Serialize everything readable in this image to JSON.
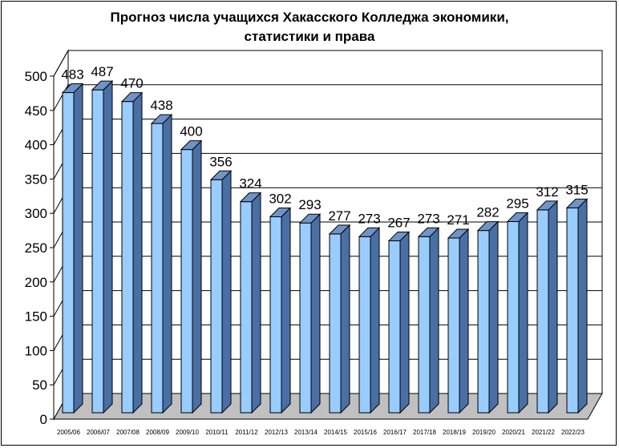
{
  "chart_data": {
    "type": "bar",
    "title_lines": [
      "Прогноз числа учащихся Хакасского Колледжа экономики,",
      "статистики и права"
    ],
    "categories": [
      "2005/06",
      "2006/07",
      "2007/08",
      "2008/09",
      "2009/10",
      "2010/11",
      "2011/12",
      "2012/13",
      "2013/14",
      "2014/15",
      "2015/16",
      "2016/17",
      "2017/18",
      "2018/19",
      "2019/20",
      "2020/21",
      "2021/22",
      "2022/23"
    ],
    "values": [
      483,
      487,
      470,
      438,
      400,
      356,
      324,
      302,
      293,
      277,
      273,
      267,
      273,
      271,
      282,
      295,
      312,
      315
    ],
    "ylim": [
      0,
      500
    ],
    "yticks": [
      0,
      50,
      100,
      150,
      200,
      250,
      300,
      350,
      400,
      450,
      500
    ],
    "grid": true,
    "legend": "none",
    "colors": {
      "bar_front": "#99ccff",
      "bar_side": "#4a6fa5",
      "bar_top": "#6e94c8",
      "floor": "#c0c0c0"
    }
  }
}
